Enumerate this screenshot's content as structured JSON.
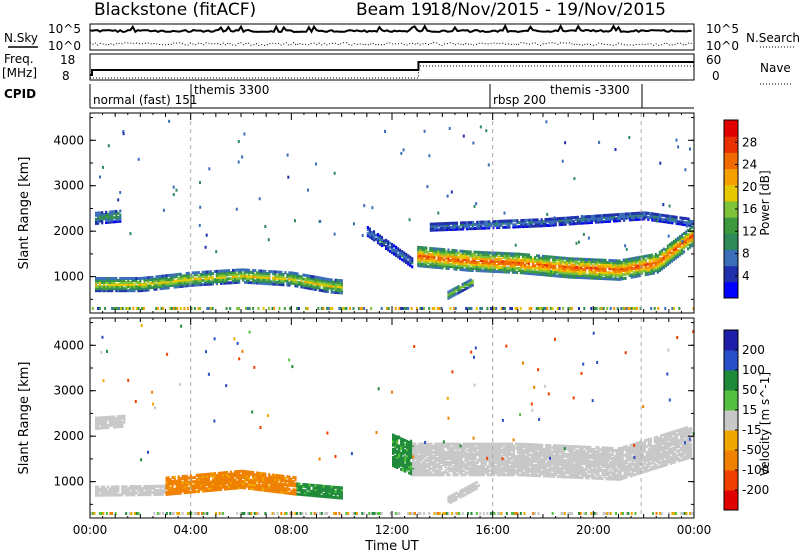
{
  "header": {
    "station": "Blackstone (fitACF)",
    "beam": "Beam 19",
    "dates": "18/Nov/2015 - 19/Nov/2015"
  },
  "status_panels": {
    "nsky_label": "N.Sky",
    "nsky_ticks": [
      "10^5",
      "10^0"
    ],
    "nsearch_label": "N.Search",
    "nsearch_ticks": [
      "10^5",
      "10^0"
    ],
    "freq_label_top": "Freq.",
    "freq_label_bottom": "[MHz]",
    "freq_ticks": [
      "18",
      "8"
    ],
    "nave_label": "Nave",
    "nave_ticks": [
      "60",
      "0"
    ],
    "cpid_label": "CPID",
    "cpid_entries": [
      {
        "text": "normal (fast) 151",
        "row": "low"
      },
      {
        "text": "themis 3300",
        "row": "high"
      },
      {
        "text": "rbsp 200",
        "row": "low"
      },
      {
        "text": "themis -3300",
        "row": "high"
      }
    ]
  },
  "colors": {
    "power_scale": [
      "#0000ff",
      "#2030ad",
      "#3a6eb8",
      "#2f8a5a",
      "#3c9a3c",
      "#7ec33a",
      "#e6c800",
      "#f5a000",
      "#f06a00",
      "#e83000",
      "#e00000"
    ],
    "velocity_scale": [
      "#1e1ea8",
      "#2850c8",
      "#1f8a3a",
      "#55c040",
      "#c8c8c8",
      "#f0a800",
      "#f08000",
      "#f04000",
      "#e00000"
    ]
  },
  "chart_data": [
    {
      "type": "heatmap",
      "name": "power",
      "ylabel": "Slant Range [km]",
      "xlabel": "Time UT",
      "x_ticks": [
        "00:00",
        "04:00",
        "08:00",
        "12:00",
        "16:00",
        "20:00",
        "00:00"
      ],
      "y_ticks": [
        1000,
        2000,
        3000,
        4000
      ],
      "ylim": [
        200,
        4600
      ],
      "xlim_hours": [
        0,
        24
      ],
      "colorbar": {
        "label": "Power [dB]",
        "ticks": [
          4,
          8,
          12,
          16,
          20,
          24,
          28
        ],
        "range": [
          0,
          32
        ]
      },
      "echo_bands": [
        {
          "t0": 0.2,
          "t1": 10.0,
          "center": [
            [
              0.2,
              830
            ],
            [
              2.0,
              830
            ],
            [
              4.0,
              950
            ],
            [
              6.0,
              1020
            ],
            [
              8.0,
              950
            ],
            [
              9.5,
              800
            ],
            [
              10.0,
              780
            ]
          ],
          "width": 280,
          "peak_db": 20
        },
        {
          "t0": 0.2,
          "t1": 1.2,
          "center": [
            [
              0.2,
              2300
            ],
            [
              1.2,
              2350
            ]
          ],
          "width": 260,
          "peak_db": 12
        },
        {
          "t0": 13.0,
          "t1": 23.9,
          "center": [
            [
              13.0,
              1450
            ],
            [
              15.0,
              1350
            ],
            [
              17.0,
              1300
            ],
            [
              19.0,
              1200
            ],
            [
              21.0,
              1150
            ],
            [
              22.5,
              1300
            ],
            [
              23.9,
              1900
            ]
          ],
          "width": 420,
          "peak_db": 28
        },
        {
          "t0": 13.5,
          "t1": 23.9,
          "center": [
            [
              13.5,
              2100
            ],
            [
              18.0,
              2200
            ],
            [
              22.0,
              2350
            ],
            [
              23.9,
              2200
            ]
          ],
          "width": 160,
          "peak_db": 8
        },
        {
          "t0": 14.2,
          "t1": 15.2,
          "center": [
            [
              14.2,
              600
            ],
            [
              15.2,
              900
            ]
          ],
          "width": 150,
          "peak_db": 18
        },
        {
          "t0": 11.0,
          "t1": 12.8,
          "center": [
            [
              11.0,
              2000
            ],
            [
              12.8,
              1300
            ]
          ],
          "width": 200,
          "peak_db": 8
        }
      ]
    },
    {
      "type": "heatmap",
      "name": "velocity",
      "ylabel": "Slant Range [km]",
      "xlabel": "Time UT",
      "x_ticks": [
        "00:00",
        "04:00",
        "08:00",
        "12:00",
        "16:00",
        "20:00",
        "00:00"
      ],
      "y_ticks": [
        1000,
        2000,
        3000,
        4000
      ],
      "ylim": [
        200,
        4600
      ],
      "xlim_hours": [
        0,
        24
      ],
      "colorbar": {
        "label": "Velocity [m s^-1]",
        "ticks": [
          200,
          100,
          50,
          15,
          -15,
          -50,
          -100,
          -200
        ]
      },
      "echo_bands": [
        {
          "t0": 0.2,
          "t1": 3.0,
          "center": [
            [
              0.2,
              800
            ],
            [
              3.0,
              820
            ]
          ],
          "width": 200,
          "velocity": 0
        },
        {
          "t0": 3.0,
          "t1": 8.2,
          "center": [
            [
              3.0,
              900
            ],
            [
              6.0,
              1050
            ],
            [
              8.2,
              900
            ]
          ],
          "width": 360,
          "velocity": -40
        },
        {
          "t0": 8.2,
          "t1": 10.0,
          "center": [
            [
              8.2,
              850
            ],
            [
              10.0,
              760
            ]
          ],
          "width": 250,
          "velocity": 40
        },
        {
          "t0": 0.2,
          "t1": 1.4,
          "center": [
            [
              0.2,
              2300
            ],
            [
              1.4,
              2350
            ]
          ],
          "width": 260,
          "velocity": 0
        },
        {
          "t0": 12.0,
          "t1": 12.8,
          "center": [
            [
              12.0,
              1700
            ],
            [
              12.8,
              1500
            ]
          ],
          "width": 700,
          "velocity": 40
        },
        {
          "t0": 12.8,
          "t1": 23.9,
          "center": [
            [
              12.8,
              1500
            ],
            [
              17.0,
              1500
            ],
            [
              21.0,
              1400
            ],
            [
              23.9,
              1900
            ]
          ],
          "width": 700,
          "velocity": 0
        },
        {
          "t0": 14.2,
          "t1": 15.4,
          "center": [
            [
              14.2,
              600
            ],
            [
              15.4,
              950
            ]
          ],
          "width": 160,
          "velocity": 0
        }
      ]
    }
  ]
}
